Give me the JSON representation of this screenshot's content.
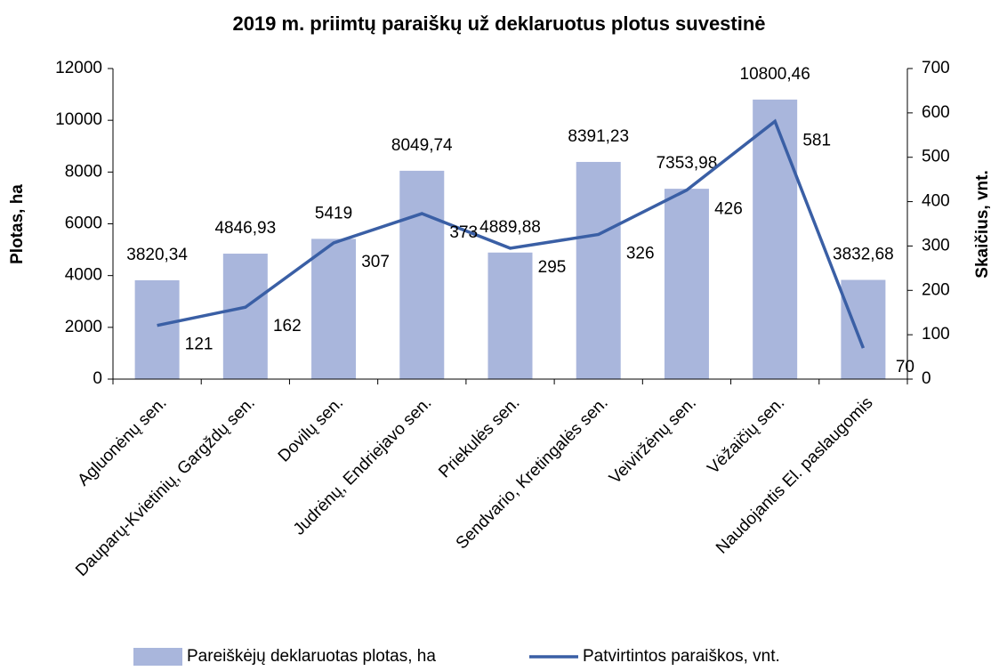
{
  "chart_data": {
    "type": "bar_line",
    "title": "2019 m. priimtų paraiškų už deklaruotus plotus suvestinė",
    "y_label": "Plotas, ha",
    "y2_label": "Skaičius, vnt.",
    "categories": [
      "Agluonėnų sen.",
      "Dauparų-Kvietinių, Gargždų sen.",
      "Dovilų sen.",
      "Judrėnų, Endriejavo sen.",
      "Priekulės sen.",
      "Sendvario, Kretingalės sen.",
      "Veiviržėnų sen.",
      "Vėžaičių sen.",
      "Naudojantis El. paslaugomis"
    ],
    "series": [
      {
        "name": "Pareiškėjų deklaruotas plotas, ha",
        "type": "bar",
        "color": "#a9b6dc",
        "values": [
          3820.34,
          4846.93,
          5419,
          8049.74,
          4889.88,
          8391.23,
          7353.98,
          10800.46,
          3832.68
        ],
        "value_labels": [
          "3820,34",
          "4846,93",
          "5419",
          "8049,74",
          "4889,88",
          "8391,23",
          "7353,98",
          "10800,46",
          "3832,68"
        ]
      },
      {
        "name": "Patvirtintos paraiškos, vnt.",
        "type": "line",
        "axis": "y2",
        "color": "#3a5fa5",
        "values": [
          121,
          162,
          307,
          373,
          295,
          326,
          426,
          581,
          70
        ]
      }
    ],
    "ylim": [
      0,
      12000
    ],
    "yticks": [
      0,
      2000,
      4000,
      6000,
      8000,
      10000,
      12000
    ],
    "y2lim": [
      0,
      700
    ],
    "y2ticks": [
      0,
      100,
      200,
      300,
      400,
      500,
      600,
      700
    ],
    "legend": "bottom"
  }
}
